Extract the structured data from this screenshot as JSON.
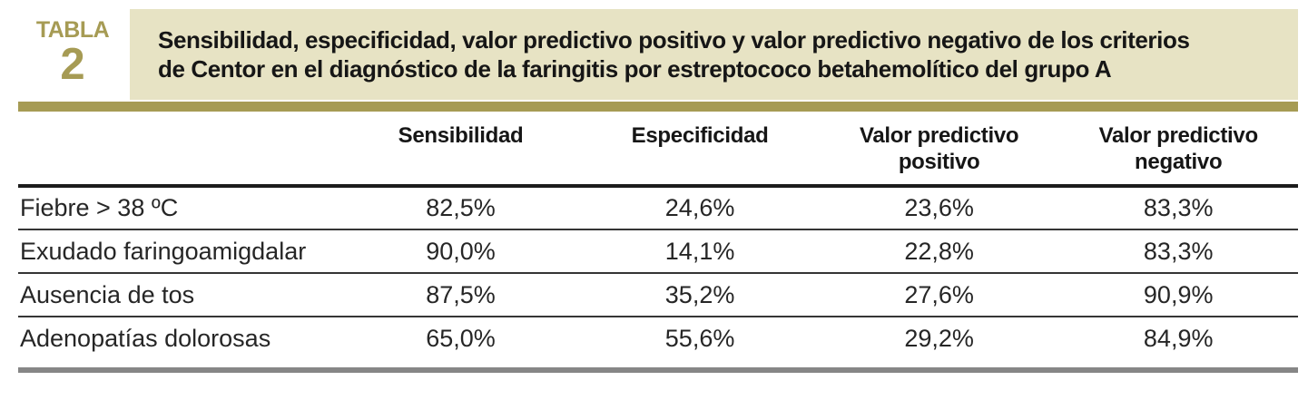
{
  "badge": {
    "word": "TABLA",
    "number": "2"
  },
  "title": {
    "line1": "Sensibilidad, especificidad, valor predictivo positivo y valor predictivo negativo de los criterios",
    "line2": "de Centor en el diagnóstico de la faringitis por estreptococo betahemolítico del grupo A"
  },
  "colors": {
    "accent_olive": "#a69b54",
    "header_beige": "#e7e3c4",
    "bottom_rule_gray": "#868686",
    "text_dark": "#1c1c1c"
  },
  "table": {
    "columns": [
      "Sensibilidad",
      "Especificidad",
      "Valor predictivo positivo",
      "Valor predictivo negativo"
    ],
    "rows": [
      {
        "label": "Fiebre > 38 ºC",
        "values": [
          "82,5%",
          "24,6%",
          "23,6%",
          "83,3%"
        ]
      },
      {
        "label": "Exudado faringoamigdalar",
        "values": [
          "90,0%",
          "14,1%",
          "22,8%",
          "83,3%"
        ]
      },
      {
        "label": "Ausencia de tos",
        "values": [
          "87,5%",
          "35,2%",
          "27,6%",
          "90,9%"
        ]
      },
      {
        "label": "Adenopatías dolorosas",
        "values": [
          "65,0%",
          "55,6%",
          "29,2%",
          "84,9%"
        ]
      }
    ]
  }
}
